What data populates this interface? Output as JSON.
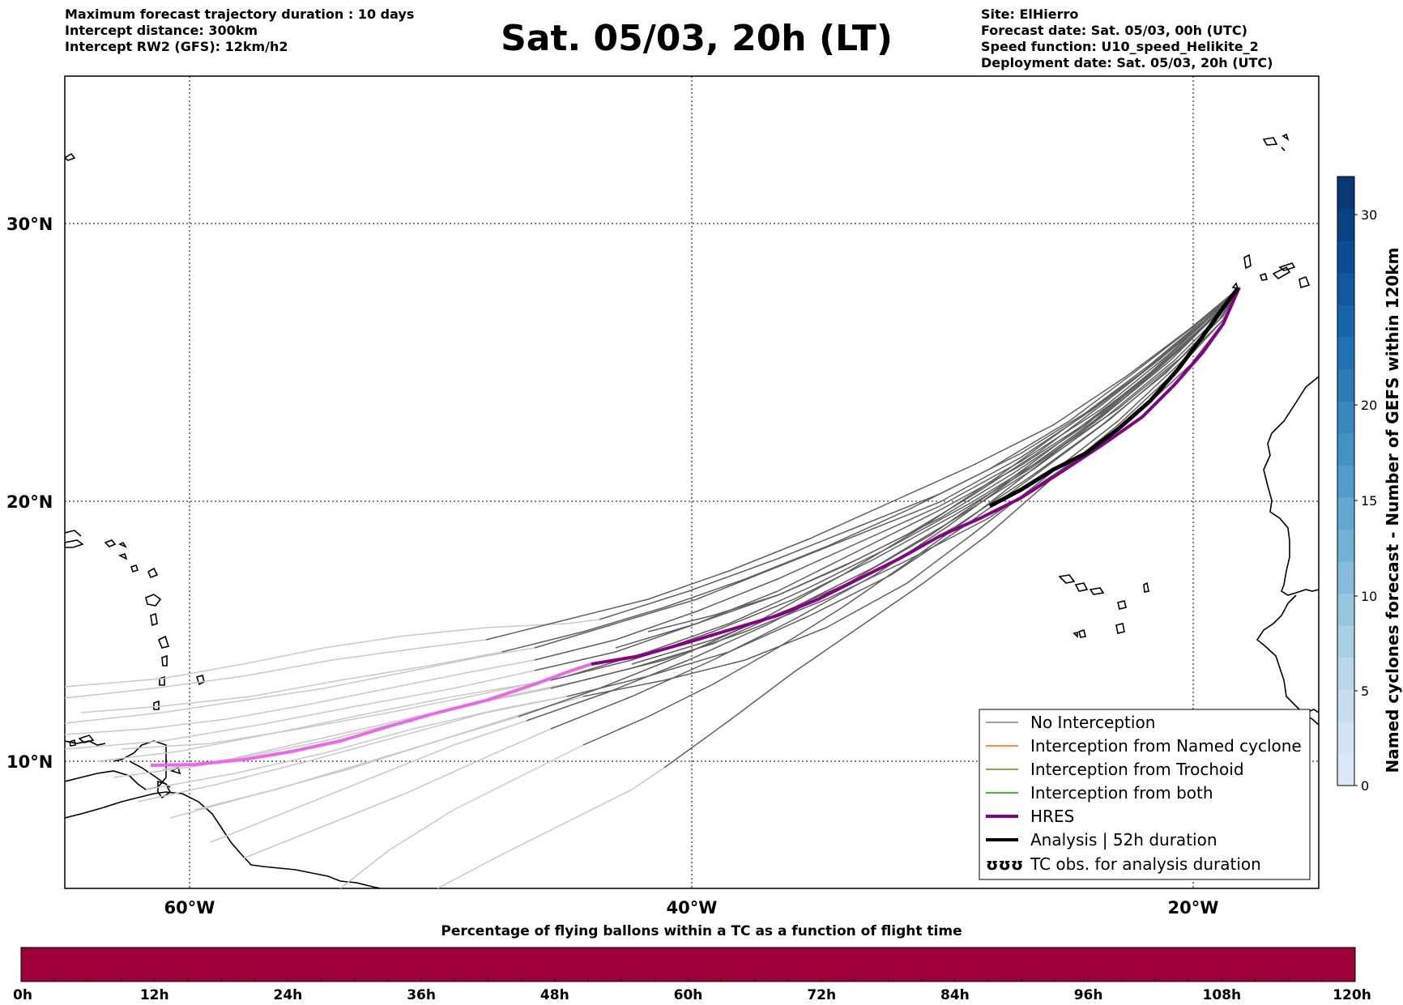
{
  "header_left": [
    "Maximum forecast trajectory duration : 10 days",
    "Intercept distance: 300km",
    "Intercept RW2 (GFS):  12km/h2"
  ],
  "title": "Sat. 05/03, 20h (LT)",
  "header_right": [
    "Site: ElHierro",
    "Forecast date: Sat. 05/03, 00h (UTC)",
    "Speed function: U10_speed_Helikite_2",
    "Deployment date: Sat. 05/03, 20h (UTC)"
  ],
  "map": {
    "lat_ticks": [
      "30°N",
      "20°N",
      "10°N"
    ],
    "lon_ticks": [
      "60°W",
      "40°W",
      "20°W"
    ],
    "colors": {
      "no_interception": "#606060",
      "ensemble_light": "#c8c8c8",
      "hres": "#880088",
      "hres_early": "#ee66ee",
      "analysis": "#000000",
      "named_cyclone": "#ff6600",
      "trochoid": "#808000",
      "both": "#00a000",
      "coast": "#000000"
    }
  },
  "legend": {
    "items": [
      {
        "label": "No Interception",
        "color": "#808080",
        "style": "thin"
      },
      {
        "label": "Interception from Named cyclone",
        "color": "#ff6600",
        "style": "thin"
      },
      {
        "label": "Interception from Trochoid",
        "color": "#808000",
        "style": "thin"
      },
      {
        "label": "Interception from both",
        "color": "#00a000",
        "style": "thin"
      },
      {
        "label": "HRES",
        "color": "#880088",
        "style": "thick"
      },
      {
        "label": "Analysis | 52h duration",
        "color": "#000000",
        "style": "thick"
      },
      {
        "label": "TC obs. for analysis duration",
        "color": "#000000",
        "style": "symbol"
      }
    ],
    "symbol_text": "ʊʊʊ"
  },
  "colorbar": {
    "label": "Named cyclones forecast - Number of GEFS within 120km",
    "ticks": [
      "0",
      "5",
      "10",
      "15",
      "20",
      "30"
    ],
    "levels": [
      "#dbe9f6",
      "#d2e3f3",
      "#c7dcef",
      "#bad6eb",
      "#a9cfe5",
      "#97c6df",
      "#85bcdb",
      "#73b2d8",
      "#62a8d3",
      "#519ccc",
      "#4292c6",
      "#3787c0",
      "#2c7bb6",
      "#2171b5",
      "#1864aa",
      "#11589f",
      "#0b4d94",
      "#084285",
      "#083876"
    ]
  },
  "bottom": {
    "title": "Percentage of flying ballons within a TC as a function of flight time",
    "bar_color": "#9e003a",
    "ticks": [
      "0h",
      "12h",
      "24h",
      "36h",
      "48h",
      "60h",
      "72h",
      "84h",
      "96h",
      "108h",
      "120h"
    ],
    "percent_within_tc": 100
  }
}
